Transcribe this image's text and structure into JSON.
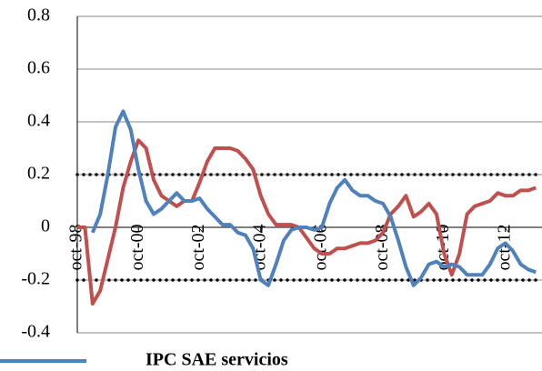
{
  "chart_data": {
    "type": "line",
    "categories": [
      "oct-98",
      null,
      null,
      null,
      null,
      null,
      null,
      null,
      "oct-00",
      null,
      null,
      null,
      null,
      null,
      null,
      null,
      "oct-02",
      null,
      null,
      null,
      null,
      null,
      null,
      null,
      "oct-04",
      null,
      null,
      null,
      null,
      null,
      null,
      null,
      "oct-06",
      null,
      null,
      null,
      null,
      null,
      null,
      null,
      "oct-08",
      null,
      null,
      null,
      null,
      null,
      null,
      null,
      "oct-10",
      null,
      null,
      null,
      null,
      null,
      null,
      null,
      "oct-12",
      null,
      null,
      null,
      null
    ],
    "series": [
      {
        "name": "IPC SAE servicios",
        "color": "#4f81bd",
        "values": [
          null,
          null,
          -0.02,
          0.05,
          0.2,
          0.38,
          0.44,
          0.37,
          0.22,
          0.1,
          0.05,
          0.07,
          0.1,
          0.13,
          0.1,
          0.1,
          0.11,
          0.07,
          0.04,
          0.01,
          0.01,
          -0.02,
          -0.03,
          -0.08,
          -0.2,
          -0.22,
          -0.14,
          -0.05,
          -0.01,
          0,
          0,
          -0.01,
          0,
          0.09,
          0.15,
          0.18,
          0.14,
          0.12,
          0.12,
          0.1,
          0.09,
          0.04,
          -0.05,
          -0.15,
          -0.22,
          -0.19,
          -0.14,
          -0.13,
          -0.15,
          -0.14,
          -0.15,
          -0.18,
          -0.18,
          -0.18,
          -0.14,
          -0.08,
          -0.06,
          -0.09,
          -0.14,
          -0.16,
          -0.17
        ]
      },
      {
        "color": "#c0504d",
        "values": [
          0,
          0,
          -0.29,
          -0.24,
          -0.12,
          0,
          0.15,
          0.25,
          0.33,
          0.3,
          0.18,
          0.12,
          0.1,
          0.08,
          0.1,
          0.1,
          0.17,
          0.25,
          0.3,
          0.3,
          0.3,
          0.29,
          0.26,
          0.22,
          0.12,
          0.05,
          0.01,
          0.01,
          0.01,
          0,
          -0.04,
          -0.08,
          -0.1,
          -0.1,
          -0.08,
          -0.08,
          -0.07,
          -0.06,
          -0.06,
          -0.05,
          -0.02,
          0.05,
          0.08,
          0.12,
          0.04,
          0.06,
          0.09,
          0.05,
          -0.1,
          -0.18,
          -0.1,
          0.05,
          0.08,
          0.09,
          0.1,
          0.13,
          0.12,
          0.12,
          0.14,
          0.14,
          0.15
        ]
      }
    ],
    "ylim": [
      -0.4,
      0.8
    ],
    "yticks": [
      -0.4,
      -0.2,
      0,
      0.2,
      0.4,
      0.6,
      0.8
    ],
    "reference_lines": [
      0.2,
      -0.2
    ],
    "grid": true
  }
}
